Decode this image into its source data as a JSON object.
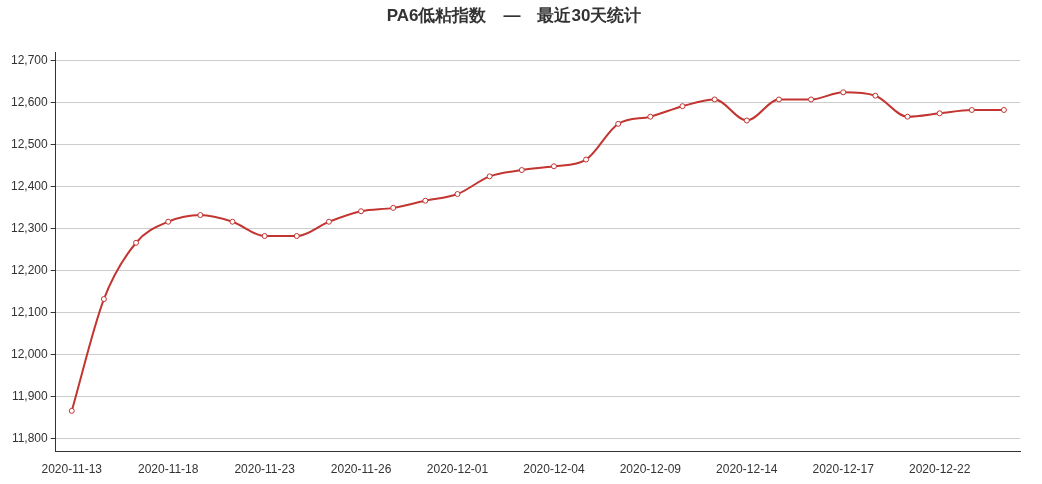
{
  "chart_data": {
    "type": "line",
    "title": "PA6低粘指数　—　最近30天统计",
    "categories": [
      "2020-11-13",
      null,
      null,
      "2020-11-18",
      null,
      null,
      "2020-11-23",
      null,
      null,
      "2020-11-26",
      null,
      null,
      "2020-12-01",
      null,
      null,
      "2020-12-04",
      null,
      null,
      "2020-12-09",
      null,
      null,
      "2020-12-14",
      null,
      null,
      "2020-12-17",
      null,
      null,
      "2020-12-22",
      null,
      null
    ],
    "series": [
      {
        "color": "#c23531",
        "values": [
          11867,
          12133,
          12267,
          12317,
          12333,
          12317,
          12283,
          12283,
          12317,
          12342,
          12350,
          12367,
          12383,
          12425,
          12440,
          12449,
          12465,
          12550,
          12567,
          12592,
          12608,
          12558,
          12608,
          12608,
          12625,
          12617,
          12567,
          12575,
          12583,
          12583
        ]
      }
    ],
    "ylim": [
      11770,
      12720
    ],
    "yticks": [
      {
        "value": 11800,
        "label": "11,800"
      },
      {
        "value": 11900,
        "label": "11,900"
      },
      {
        "value": 12000,
        "label": "12,000"
      },
      {
        "value": 12100,
        "label": "12,100"
      },
      {
        "value": 12200,
        "label": "12,200"
      },
      {
        "value": 12300,
        "label": "12,300"
      },
      {
        "value": 12400,
        "label": "12,400"
      },
      {
        "value": 12500,
        "label": "12,500"
      },
      {
        "value": 12600,
        "label": "12,600"
      },
      {
        "value": 12700,
        "label": "12,700"
      }
    ],
    "grid": "y",
    "marker": "circle",
    "line_style": "solid"
  }
}
